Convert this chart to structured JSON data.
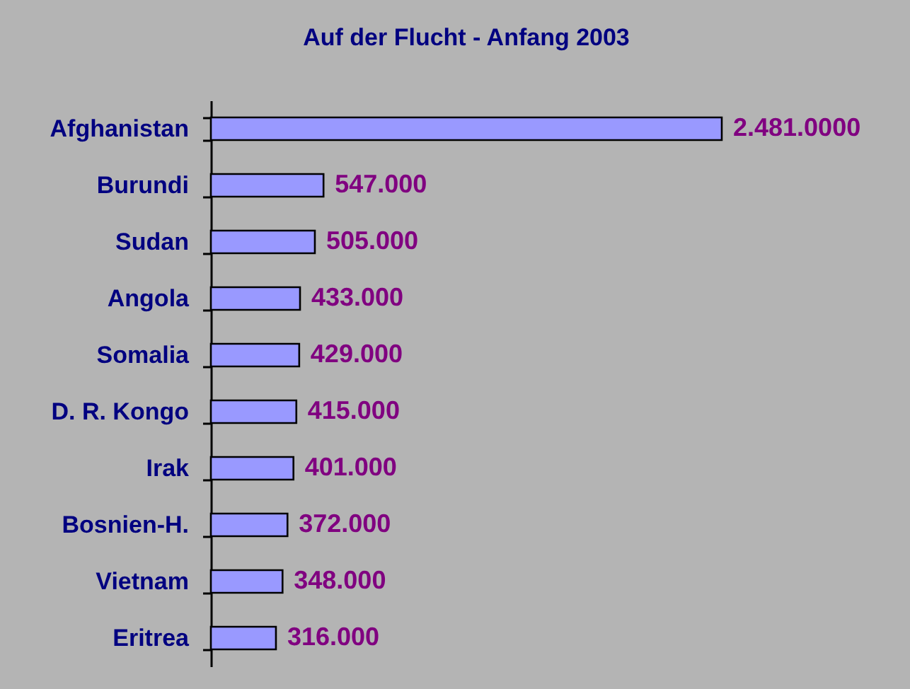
{
  "chart_data": {
    "type": "bar",
    "orientation": "horizontal",
    "title": "Auf der Flucht - Anfang 2003",
    "categories": [
      "Afghanistan",
      "Burundi",
      "Sudan",
      "Angola",
      "Somalia",
      "D. R. Kongo",
      "Irak",
      "Bosnien-H.",
      "Vietnam",
      "Eritrea"
    ],
    "values": [
      2481000,
      547000,
      505000,
      433000,
      429000,
      415000,
      401000,
      372000,
      348000,
      316000
    ],
    "value_labels": [
      "2.481.0000",
      "547.000",
      "505.000",
      "433.000",
      "429.000",
      "415.000",
      "401.000",
      "372.000",
      "348.000",
      "316.000"
    ],
    "color": "#9999ff",
    "tick_labels": "y"
  }
}
